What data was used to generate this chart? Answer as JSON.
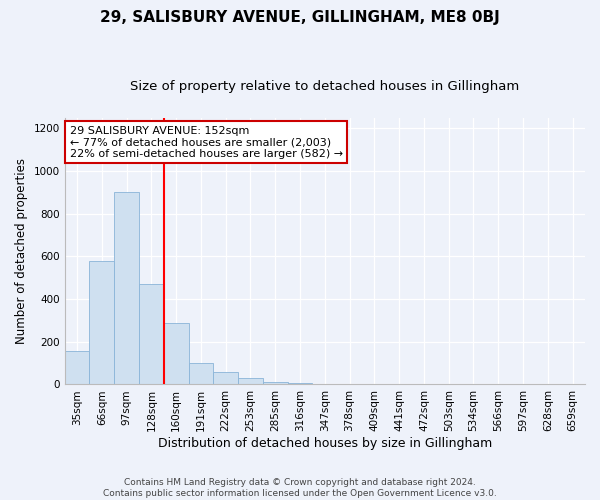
{
  "title": "29, SALISBURY AVENUE, GILLINGHAM, ME8 0BJ",
  "subtitle": "Size of property relative to detached houses in Gillingham",
  "xlabel": "Distribution of detached houses by size in Gillingham",
  "ylabel": "Number of detached properties",
  "bar_color": "#cfe0f0",
  "bar_edge_color": "#8ab4d8",
  "categories": [
    "35sqm",
    "66sqm",
    "97sqm",
    "128sqm",
    "160sqm",
    "191sqm",
    "222sqm",
    "253sqm",
    "285sqm",
    "316sqm",
    "347sqm",
    "378sqm",
    "409sqm",
    "441sqm",
    "472sqm",
    "503sqm",
    "534sqm",
    "566sqm",
    "597sqm",
    "628sqm",
    "659sqm"
  ],
  "values": [
    155,
    580,
    900,
    470,
    290,
    100,
    60,
    28,
    10,
    5,
    3,
    2,
    1,
    0,
    0,
    0,
    0,
    0,
    0,
    0,
    0
  ],
  "red_line_index": 4,
  "ylim": [
    0,
    1250
  ],
  "yticks": [
    0,
    200,
    400,
    600,
    800,
    1000,
    1200
  ],
  "annotation_line1": "29 SALISBURY AVENUE: 152sqm",
  "annotation_line2": "← 77% of detached houses are smaller (2,003)",
  "annotation_line3": "22% of semi-detached houses are larger (582) →",
  "annotation_box_facecolor": "#ffffff",
  "annotation_box_edgecolor": "#cc0000",
  "footnote_line1": "Contains HM Land Registry data © Crown copyright and database right 2024.",
  "footnote_line2": "Contains public sector information licensed under the Open Government Licence v3.0.",
  "background_color": "#eef2fa",
  "grid_color": "#ffffff",
  "title_fontsize": 11,
  "subtitle_fontsize": 9.5,
  "xlabel_fontsize": 9,
  "ylabel_fontsize": 8.5,
  "tick_fontsize": 7.5,
  "annotation_fontsize": 8,
  "footnote_fontsize": 6.5
}
